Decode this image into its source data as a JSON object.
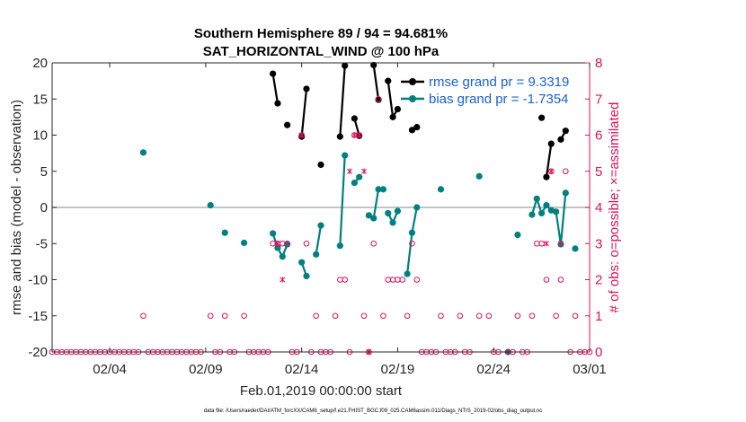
{
  "chart_data": {
    "type": "line",
    "title_line1": "Southern Hemisphere 89 / 94 = 94.681%",
    "title_line2": "SAT_HORIZONTAL_WIND @ 100 hPa",
    "xlabel": "Feb.01,2019 00:00:00 start",
    "ylabel_left": "rmse and bias (model - observation)",
    "ylabel_right": "# of obs: o=possible; ×=assimilated",
    "footer": "data file: /Users/raeder/DAI/ATM_forcXX/CAM6_setup/f.e21.FHIST_BGC.f09_025.CAM6assim.011/Diags_NTrS_2019-02/obs_diag_output.nc",
    "xlim": [
      0,
      28
    ],
    "ylim_left": [
      -20,
      20
    ],
    "ylim_right": [
      0,
      8
    ],
    "x_ticks": [
      {
        "x": 3,
        "label": "02/04"
      },
      {
        "x": 8,
        "label": "02/09"
      },
      {
        "x": 13,
        "label": "02/14"
      },
      {
        "x": 18,
        "label": "02/19"
      },
      {
        "x": 23,
        "label": "02/24"
      },
      {
        "x": 28,
        "label": "03/01"
      }
    ],
    "y_ticks_left": [
      -20,
      -15,
      -10,
      -5,
      0,
      5,
      10,
      15,
      20
    ],
    "y_ticks_right": [
      0,
      1,
      2,
      3,
      4,
      5,
      6,
      7,
      8
    ],
    "legend": {
      "rmse": "rmse grand pr = 9.3319",
      "bias": "bias grand pr = -1.7354"
    },
    "colors": {
      "rmse": "#000000",
      "bias": "#008080",
      "obs": "#e0105a",
      "legend_text": "#1a5fe0",
      "zero_line": "#b0b0b0"
    },
    "series": [
      {
        "name": "rmse",
        "segments": [
          [
            [
              11.5,
              18.5
            ],
            [
              11.75,
              14.4
            ]
          ],
          [
            [
              12.25,
              11.4
            ]
          ],
          [
            [
              13.0,
              9.8
            ],
            [
              13.25,
              16.4
            ]
          ],
          [
            [
              14.0,
              5.9
            ]
          ],
          [
            [
              15.0,
              9.8
            ],
            [
              15.25,
              19.6
            ]
          ],
          [
            [
              15.75,
              12.3
            ],
            [
              16.0,
              9.9
            ]
          ],
          [
            [
              16.75,
              19.7
            ],
            [
              17.0,
              14.9
            ]
          ],
          [
            [
              17.5,
              17.5
            ],
            [
              17.75,
              12.5
            ],
            [
              18.0,
              13.6
            ]
          ],
          [
            [
              18.75,
              10.7
            ],
            [
              19.0,
              11.1
            ]
          ],
          [
            [
              25.5,
              12.4
            ]
          ],
          [
            [
              25.75,
              4.2
            ],
            [
              26.0,
              8.8
            ]
          ],
          [
            [
              26.5,
              9.4
            ],
            [
              26.75,
              10.6
            ]
          ]
        ]
      },
      {
        "name": "bias",
        "segments": [
          [
            [
              4.75,
              7.6
            ]
          ],
          [
            [
              8.25,
              0.3
            ]
          ],
          [
            [
              9.0,
              -3.5
            ]
          ],
          [
            [
              10.0,
              -4.9
            ]
          ],
          [
            [
              11.5,
              -3.6
            ],
            [
              11.75,
              -5.6
            ],
            [
              12.0,
              -6.8
            ],
            [
              12.25,
              -5.1
            ]
          ],
          [
            [
              13.0,
              -7.6
            ],
            [
              13.25,
              -9.5
            ]
          ],
          [
            [
              13.75,
              -6.5
            ],
            [
              14.0,
              -2.5
            ]
          ],
          [
            [
              15.0,
              -5.3
            ],
            [
              15.25,
              7.2
            ]
          ],
          [
            [
              15.75,
              3.4
            ],
            [
              16.0,
              4.2
            ]
          ],
          [
            [
              16.5,
              -1.1
            ],
            [
              16.75,
              -1.5
            ],
            [
              17.0,
              2.5
            ],
            [
              17.25,
              2.5
            ]
          ],
          [
            [
              17.5,
              -0.8
            ],
            [
              17.75,
              -2.1
            ],
            [
              18.0,
              -0.5
            ]
          ],
          [
            [
              18.5,
              -9.2
            ],
            [
              18.75,
              -3.5
            ],
            [
              19.0,
              0.0
            ]
          ],
          [
            [
              20.25,
              2.5
            ]
          ],
          [
            [
              22.25,
              4.3
            ]
          ],
          [
            [
              23.75,
              -20.0
            ]
          ],
          [
            [
              24.25,
              -3.8
            ]
          ],
          [
            [
              25.0,
              -1.0
            ],
            [
              25.25,
              1.2
            ],
            [
              25.5,
              -0.8
            ],
            [
              25.75,
              0.3
            ],
            [
              26.0,
              -0.4
            ],
            [
              26.25,
              -0.6
            ],
            [
              26.5,
              -5.1
            ],
            [
              26.75,
              2.0
            ]
          ],
          [
            [
              27.25,
              -5.7
            ]
          ]
        ]
      }
    ],
    "obs_possible": [
      [
        0.0,
        0
      ],
      [
        0.25,
        0
      ],
      [
        0.5,
        0
      ],
      [
        0.75,
        0
      ],
      [
        1.0,
        0
      ],
      [
        1.25,
        0
      ],
      [
        1.5,
        0
      ],
      [
        1.75,
        0
      ],
      [
        2.0,
        0
      ],
      [
        2.25,
        0
      ],
      [
        2.5,
        0
      ],
      [
        2.75,
        0
      ],
      [
        3.0,
        0
      ],
      [
        3.25,
        0
      ],
      [
        3.5,
        0
      ],
      [
        3.75,
        0
      ],
      [
        4.0,
        0
      ],
      [
        4.25,
        0
      ],
      [
        4.5,
        0
      ],
      [
        4.75,
        1
      ],
      [
        5.0,
        0
      ],
      [
        5.25,
        0
      ],
      [
        5.5,
        0
      ],
      [
        5.75,
        0
      ],
      [
        6.0,
        0
      ],
      [
        6.25,
        0
      ],
      [
        6.5,
        0
      ],
      [
        6.75,
        0
      ],
      [
        7.0,
        0
      ],
      [
        7.25,
        0
      ],
      [
        7.5,
        0
      ],
      [
        7.75,
        0
      ],
      [
        8.25,
        1
      ],
      [
        8.5,
        0
      ],
      [
        8.75,
        0
      ],
      [
        9.0,
        1
      ],
      [
        9.25,
        0
      ],
      [
        9.5,
        0
      ],
      [
        10.0,
        1
      ],
      [
        10.25,
        0
      ],
      [
        10.5,
        0
      ],
      [
        10.75,
        0
      ],
      [
        11.0,
        0
      ],
      [
        11.25,
        0
      ],
      [
        11.5,
        3
      ],
      [
        11.75,
        3
      ],
      [
        12.0,
        3
      ],
      [
        12.25,
        3
      ],
      [
        12.5,
        0
      ],
      [
        12.75,
        0
      ],
      [
        13.0,
        6
      ],
      [
        13.25,
        3
      ],
      [
        13.5,
        0
      ],
      [
        13.75,
        1
      ],
      [
        14.0,
        0
      ],
      [
        14.25,
        0
      ],
      [
        14.5,
        0
      ],
      [
        14.75,
        1
      ],
      [
        15.0,
        2
      ],
      [
        15.25,
        2
      ],
      [
        15.5,
        0
      ],
      [
        15.75,
        6
      ],
      [
        16.0,
        6
      ],
      [
        16.25,
        1
      ],
      [
        16.5,
        0
      ],
      [
        16.75,
        3
      ],
      [
        17.0,
        7
      ],
      [
        17.25,
        1
      ],
      [
        17.5,
        2
      ],
      [
        17.75,
        2
      ],
      [
        18.0,
        2
      ],
      [
        18.25,
        2
      ],
      [
        18.5,
        1
      ],
      [
        18.75,
        3
      ],
      [
        19.0,
        2
      ],
      [
        19.25,
        0
      ],
      [
        19.5,
        0
      ],
      [
        19.75,
        0
      ],
      [
        20.0,
        0
      ],
      [
        20.25,
        1
      ],
      [
        20.5,
        0
      ],
      [
        20.75,
        0
      ],
      [
        21.0,
        0
      ],
      [
        21.25,
        1
      ],
      [
        21.5,
        0
      ],
      [
        21.75,
        0
      ],
      [
        22.25,
        1
      ],
      [
        22.75,
        1
      ],
      [
        23.0,
        0
      ],
      [
        23.25,
        0
      ],
      [
        23.75,
        0
      ],
      [
        24.0,
        0
      ],
      [
        24.25,
        1
      ],
      [
        24.5,
        0
      ],
      [
        24.75,
        0
      ],
      [
        25.0,
        1
      ],
      [
        25.25,
        3
      ],
      [
        25.5,
        3
      ],
      [
        25.75,
        2
      ],
      [
        26.0,
        5
      ],
      [
        26.25,
        1
      ],
      [
        26.5,
        2
      ],
      [
        26.75,
        5
      ],
      [
        27.0,
        0
      ],
      [
        27.25,
        1
      ],
      [
        27.5,
        0
      ],
      [
        27.75,
        0
      ],
      [
        28.0,
        0
      ]
    ],
    "obs_assimilated": [
      [
        11.75,
        3
      ],
      [
        12.0,
        2
      ],
      [
        13.0,
        6
      ],
      [
        15.75,
        6
      ],
      [
        15.5,
        5
      ],
      [
        16.0,
        6
      ],
      [
        16.25,
        5
      ],
      [
        16.5,
        0
      ],
      [
        25.75,
        3
      ],
      [
        26.0,
        5
      ],
      [
        26.5,
        3
      ]
    ]
  }
}
